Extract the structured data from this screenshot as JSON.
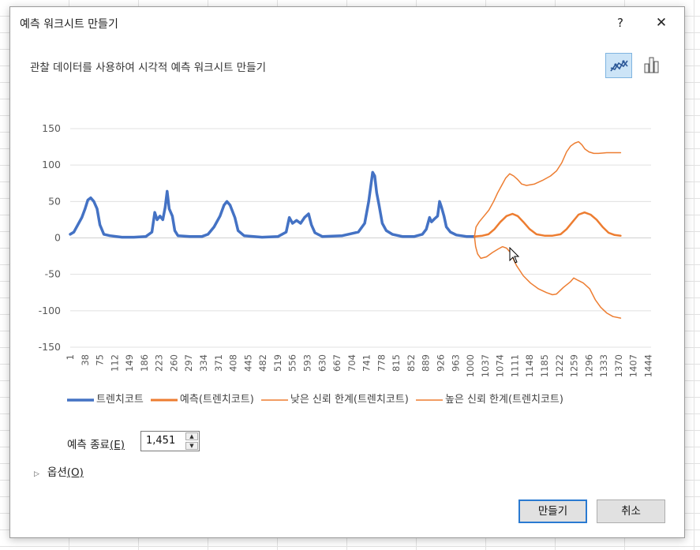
{
  "dialog": {
    "title": "예측 워크시트 만들기",
    "help": "?",
    "close": "✕",
    "subtitle": "관찰 데이터를 사용하여 시각적 예측 워크시트 만들기",
    "chart_types": [
      "line-chart-icon",
      "column-chart-icon"
    ],
    "selected_chart_type": "line-chart-icon"
  },
  "chart_data": {
    "type": "line",
    "ylim": [
      -150,
      150
    ],
    "y_ticks": [
      "150",
      "100",
      "50",
      "0",
      "-50",
      "-100",
      "-150"
    ],
    "x_ticks": [
      "1",
      "38",
      "75",
      "112",
      "149",
      "186",
      "223",
      "260",
      "297",
      "334",
      "371",
      "408",
      "445",
      "482",
      "519",
      "556",
      "593",
      "630",
      "667",
      "704",
      "741",
      "778",
      "815",
      "852",
      "889",
      "926",
      "963",
      "1000",
      "1037",
      "1074",
      "1111",
      "1148",
      "1185",
      "1222",
      "1259",
      "1296",
      "1333",
      "1370",
      "1407",
      "1444"
    ],
    "x_range": [
      1,
      1451
    ],
    "colors": {
      "trend": "#4472c4",
      "forecast": "#ed7d31"
    },
    "series": [
      {
        "name": "트렌치코트",
        "color": "#4472c4",
        "points": [
          [
            1,
            5
          ],
          [
            10,
            8
          ],
          [
            20,
            18
          ],
          [
            30,
            28
          ],
          [
            38,
            40
          ],
          [
            45,
            52
          ],
          [
            52,
            55
          ],
          [
            60,
            50
          ],
          [
            68,
            40
          ],
          [
            75,
            18
          ],
          [
            85,
            5
          ],
          [
            100,
            3
          ],
          [
            130,
            1
          ],
          [
            160,
            1
          ],
          [
            190,
            2
          ],
          [
            205,
            8
          ],
          [
            212,
            35
          ],
          [
            218,
            25
          ],
          [
            225,
            30
          ],
          [
            232,
            25
          ],
          [
            238,
            42
          ],
          [
            243,
            64
          ],
          [
            248,
            40
          ],
          [
            256,
            30
          ],
          [
            262,
            10
          ],
          [
            270,
            3
          ],
          [
            300,
            2
          ],
          [
            330,
            2
          ],
          [
            345,
            5
          ],
          [
            360,
            15
          ],
          [
            375,
            30
          ],
          [
            385,
            45
          ],
          [
            392,
            50
          ],
          [
            400,
            45
          ],
          [
            412,
            28
          ],
          [
            420,
            10
          ],
          [
            435,
            3
          ],
          [
            480,
            1
          ],
          [
            520,
            2
          ],
          [
            540,
            8
          ],
          [
            548,
            28
          ],
          [
            556,
            20
          ],
          [
            566,
            24
          ],
          [
            576,
            20
          ],
          [
            586,
            28
          ],
          [
            596,
            33
          ],
          [
            603,
            18
          ],
          [
            612,
            7
          ],
          [
            630,
            2
          ],
          [
            680,
            3
          ],
          [
            720,
            8
          ],
          [
            736,
            20
          ],
          [
            746,
            50
          ],
          [
            751,
            70
          ],
          [
            756,
            90
          ],
          [
            761,
            85
          ],
          [
            766,
            62
          ],
          [
            772,
            45
          ],
          [
            780,
            20
          ],
          [
            790,
            10
          ],
          [
            805,
            5
          ],
          [
            830,
            2
          ],
          [
            860,
            2
          ],
          [
            880,
            5
          ],
          [
            890,
            12
          ],
          [
            898,
            28
          ],
          [
            903,
            22
          ],
          [
            910,
            26
          ],
          [
            918,
            30
          ],
          [
            923,
            50
          ],
          [
            928,
            42
          ],
          [
            934,
            30
          ],
          [
            940,
            15
          ],
          [
            950,
            8
          ],
          [
            965,
            4
          ],
          [
            990,
            2
          ],
          [
            1010,
            2
          ]
        ]
      },
      {
        "name": "예측(트렌치코트)",
        "color": "#ed7d31",
        "points": [
          [
            1010,
            2
          ],
          [
            1030,
            3
          ],
          [
            1045,
            5
          ],
          [
            1060,
            12
          ],
          [
            1075,
            22
          ],
          [
            1090,
            30
          ],
          [
            1105,
            33
          ],
          [
            1118,
            30
          ],
          [
            1132,
            22
          ],
          [
            1148,
            12
          ],
          [
            1165,
            5
          ],
          [
            1185,
            3
          ],
          [
            1205,
            3
          ],
          [
            1225,
            5
          ],
          [
            1240,
            12
          ],
          [
            1255,
            22
          ],
          [
            1270,
            32
          ],
          [
            1285,
            35
          ],
          [
            1300,
            32
          ],
          [
            1315,
            25
          ],
          [
            1330,
            15
          ],
          [
            1345,
            7
          ],
          [
            1360,
            4
          ],
          [
            1375,
            3
          ]
        ]
      },
      {
        "name": "낮은 신뢰 한계(트렌치코트)",
        "color": "#ed7d31",
        "points": [
          [
            1010,
            2
          ],
          [
            1013,
            -12
          ],
          [
            1018,
            -22
          ],
          [
            1026,
            -28
          ],
          [
            1040,
            -26
          ],
          [
            1055,
            -20
          ],
          [
            1070,
            -15
          ],
          [
            1080,
            -12
          ],
          [
            1090,
            -14
          ],
          [
            1100,
            -20
          ],
          [
            1115,
            -38
          ],
          [
            1132,
            -52
          ],
          [
            1150,
            -62
          ],
          [
            1170,
            -70
          ],
          [
            1190,
            -75
          ],
          [
            1205,
            -78
          ],
          [
            1215,
            -77
          ],
          [
            1232,
            -68
          ],
          [
            1250,
            -60
          ],
          [
            1258,
            -55
          ],
          [
            1268,
            -58
          ],
          [
            1282,
            -62
          ],
          [
            1298,
            -70
          ],
          [
            1312,
            -85
          ],
          [
            1325,
            -95
          ],
          [
            1340,
            -103
          ],
          [
            1356,
            -108
          ],
          [
            1375,
            -110
          ]
        ]
      },
      {
        "name": "높은 신뢰 한계(트렌치코트)",
        "color": "#ed7d31",
        "points": [
          [
            1010,
            2
          ],
          [
            1014,
            15
          ],
          [
            1022,
            22
          ],
          [
            1034,
            30
          ],
          [
            1046,
            38
          ],
          [
            1058,
            50
          ],
          [
            1068,
            62
          ],
          [
            1078,
            72
          ],
          [
            1088,
            82
          ],
          [
            1098,
            88
          ],
          [
            1108,
            85
          ],
          [
            1118,
            80
          ],
          [
            1128,
            74
          ],
          [
            1140,
            72
          ],
          [
            1160,
            74
          ],
          [
            1180,
            79
          ],
          [
            1200,
            85
          ],
          [
            1215,
            92
          ],
          [
            1228,
            103
          ],
          [
            1240,
            118
          ],
          [
            1250,
            126
          ],
          [
            1260,
            130
          ],
          [
            1270,
            132
          ],
          [
            1278,
            128
          ],
          [
            1286,
            122
          ],
          [
            1296,
            118
          ],
          [
            1308,
            116
          ],
          [
            1320,
            116
          ],
          [
            1340,
            117
          ],
          [
            1375,
            117
          ]
        ]
      }
    ]
  },
  "legend": [
    "트렌치코트",
    "예측(트렌치코트)",
    "낮은 신뢰 한계(트렌치코트)",
    "높은 신뢰 한계(트렌치코트)"
  ],
  "forecast_end": {
    "label": "예측 종료",
    "mnemonic": "(E)",
    "value": "1,451"
  },
  "options": {
    "label": "옵션",
    "mnemonic": "(O)"
  },
  "buttons": {
    "create": "만들기",
    "cancel": "취소"
  }
}
